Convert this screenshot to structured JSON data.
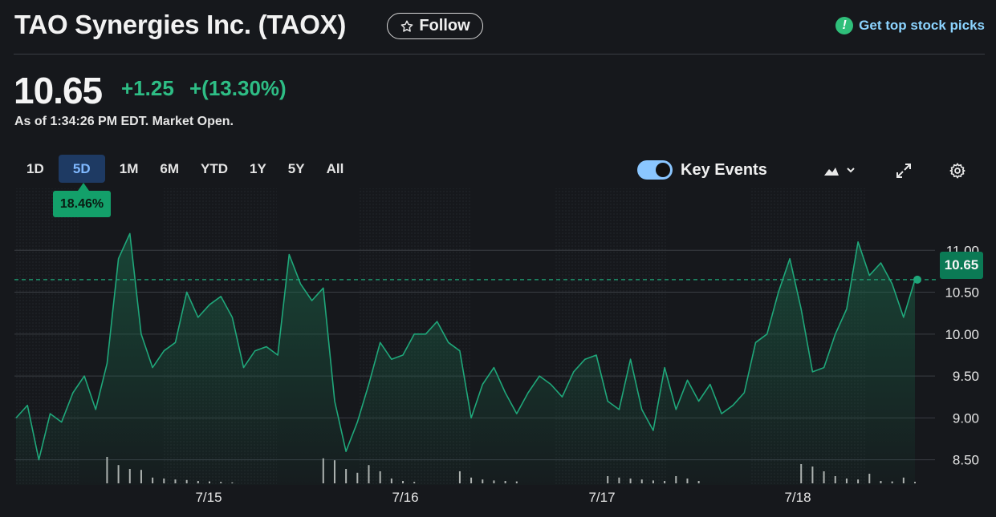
{
  "header": {
    "title": "TAO Synergies Inc. (TAOX)",
    "follow_label": "Follow",
    "top_picks_label": "Get top stock picks"
  },
  "quote": {
    "price": "10.65",
    "change": "+1.25",
    "change_pct": "+(13.30%)",
    "as_of": "As of 1:34:26 PM EDT. Market Open."
  },
  "range_tabs": [
    "1D",
    "5D",
    "1M",
    "6M",
    "YTD",
    "1Y",
    "5Y",
    "All"
  ],
  "active_tab": "5D",
  "controls": {
    "key_events_label": "Key Events",
    "key_events_on": true,
    "chart_type_icon": "mountain-chart-icon",
    "expand_icon": "expand-icon",
    "settings_icon": "gear-icon"
  },
  "hover_badge": "18.46%",
  "current_price_label": "10.65",
  "colors": {
    "background": "#16181c",
    "up": "#2ebd85",
    "line": "#1fa77a",
    "accent_tab": "#1e3a63",
    "link": "#8cd4ff"
  },
  "chart_data": {
    "type": "area",
    "x_labels": [
      "7/15",
      "7/16",
      "7/17",
      "7/18"
    ],
    "y_ticks": [
      8.5,
      9.0,
      9.5,
      10.0,
      10.5,
      11.0
    ],
    "ylim": [
      8.2,
      11.5
    ],
    "reference_price": 10.65,
    "series": [
      {
        "values": [
          9.0,
          9.15,
          8.5,
          9.05,
          8.95,
          9.3,
          9.5,
          9.1,
          9.65,
          10.9,
          11.2,
          10.0,
          9.6,
          9.8,
          9.9,
          10.5,
          10.2,
          10.35,
          10.45,
          10.2,
          9.6,
          9.8,
          9.85,
          9.75,
          10.95,
          10.6,
          10.4,
          10.55,
          9.2,
          8.6,
          8.95,
          9.4,
          9.9,
          9.7,
          9.75,
          10.0,
          10.0,
          10.15,
          9.9,
          9.8,
          9.0,
          9.4,
          9.6,
          9.3,
          9.05,
          9.3,
          9.5,
          9.4,
          9.25,
          9.55,
          9.7,
          9.75,
          9.2,
          9.1,
          9.7,
          9.1,
          8.85,
          9.6,
          9.1,
          9.45,
          9.2,
          9.4,
          9.05,
          9.15,
          9.3,
          9.9,
          10.0,
          10.5,
          10.9,
          10.3,
          9.55,
          9.6,
          10.0,
          10.3,
          11.1,
          10.7,
          10.85,
          10.6,
          10.2,
          10.65
        ],
        "volume": [
          0,
          0,
          0,
          0,
          0,
          0,
          0,
          0,
          0.55,
          0.38,
          0.3,
          0.28,
          0.12,
          0.1,
          0.08,
          0.07,
          0.05,
          0.04,
          0.03,
          0.02,
          0,
          0,
          0,
          0,
          0,
          0,
          0,
          0.52,
          0.48,
          0.3,
          0.22,
          0.38,
          0.25,
          0.1,
          0.05,
          0.03,
          0,
          0,
          0,
          0.25,
          0.12,
          0.08,
          0.06,
          0.05,
          0.04,
          0,
          0,
          0,
          0,
          0,
          0,
          0,
          0.15,
          0.12,
          0.1,
          0.08,
          0.06,
          0.05,
          0.15,
          0.1,
          0.05,
          0,
          0,
          0,
          0,
          0,
          0,
          0,
          0,
          0.4,
          0.35,
          0.25,
          0.15,
          0.1,
          0.08,
          0.2,
          0.05,
          0.04,
          0.12,
          0.03
        ]
      }
    ]
  }
}
